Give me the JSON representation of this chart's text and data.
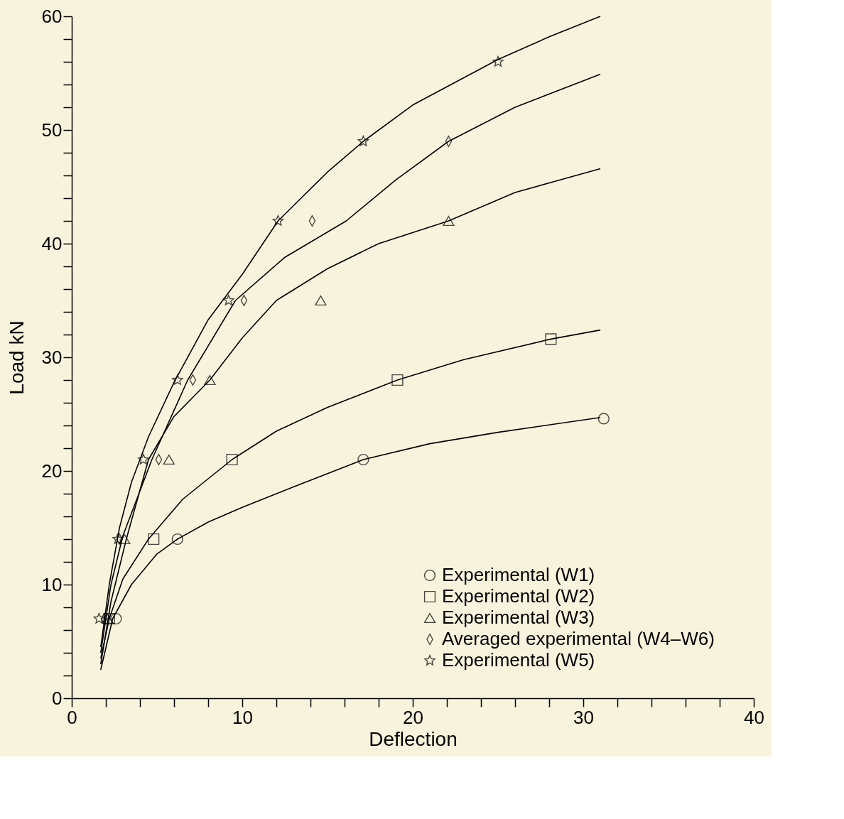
{
  "chart_data": {
    "type": "scatter",
    "xlabel": "Deflection",
    "ylabel": "Load  kN",
    "xlim": [
      0,
      40
    ],
    "ylim": [
      0,
      60
    ],
    "xticks": [
      0,
      {
        "value": 2,
        "label": null
      },
      {
        "value": 4,
        "label": null
      },
      {
        "value": 6,
        "label": null
      },
      {
        "value": 8,
        "label": null
      },
      10,
      {
        "value": 12,
        "label": null
      },
      {
        "value": 14,
        "label": null
      },
      {
        "value": 16,
        "label": null
      },
      {
        "value": 18,
        "label": null
      },
      20,
      {
        "value": 22,
        "label": null
      },
      {
        "value": 24,
        "label": null
      },
      {
        "value": 26,
        "label": null
      },
      {
        "value": 28,
        "label": null
      },
      30,
      {
        "value": 32,
        "label": null
      },
      {
        "value": 34,
        "label": null
      },
      {
        "value": 36,
        "label": null
      },
      {
        "value": 38,
        "label": null
      },
      40
    ],
    "yticks": [
      0,
      {
        "value": 2,
        "label": null
      },
      {
        "value": 4,
        "label": null
      },
      {
        "value": 6,
        "label": null
      },
      {
        "value": 8,
        "label": null
      },
      10,
      {
        "value": 12,
        "label": null
      },
      {
        "value": 14,
        "label": null
      },
      {
        "value": 16,
        "label": null
      },
      {
        "value": 18,
        "label": null
      },
      20,
      {
        "value": 22,
        "label": null
      },
      {
        "value": 24,
        "label": null
      },
      {
        "value": 26,
        "label": null
      },
      {
        "value": 28,
        "label": null
      },
      30,
      {
        "value": 32,
        "label": null
      },
      {
        "value": 34,
        "label": null
      },
      {
        "value": 36,
        "label": null
      },
      {
        "value": 38,
        "label": null
      },
      40,
      {
        "value": 42,
        "label": null
      },
      {
        "value": 44,
        "label": null
      },
      {
        "value": 46,
        "label": null
      },
      {
        "value": 48,
        "label": null
      },
      50,
      {
        "value": 52,
        "label": null
      },
      {
        "value": 54,
        "label": null
      },
      {
        "value": 56,
        "label": null
      },
      {
        "value": 58,
        "label": null
      },
      60
    ],
    "grid": false,
    "legend": "bottom right",
    "series": [
      {
        "name": "Experimental  (W1)",
        "marker": "circle",
        "color": "#000000",
        "x": [
          2.6,
          6.2,
          17.1,
          31.2
        ],
        "values": [
          7,
          14,
          21,
          24.6
        ]
      },
      {
        "name": "Experimental  (W2)",
        "marker": "square",
        "color": "#000000",
        "x": [
          2.2,
          4.8,
          9.4,
          19.1,
          28.1
        ],
        "values": [
          7,
          14,
          21,
          28,
          31.6
        ]
      },
      {
        "name": "Experimental  (W3)",
        "marker": "triangle",
        "color": "#000000",
        "x": [
          2.1,
          3.1,
          5.7,
          8.1,
          14.6,
          22.1
        ],
        "values": [
          7,
          14,
          21,
          28,
          35,
          42
        ]
      },
      {
        "name": "Averaged  experimental  (W4–W6)",
        "marker": "diamond",
        "color": "#000000",
        "x": [
          1.9,
          2.8,
          5.1,
          7.1,
          10.1,
          14.1,
          22.1
        ],
        "values": [
          7,
          14,
          21,
          28,
          35,
          42,
          49
        ]
      },
      {
        "name": "Experimental  (W5)",
        "marker": "star",
        "color": "#000000",
        "x": [
          1.6,
          2.7,
          4.2,
          6.2,
          9.2,
          12.1,
          17.1,
          25.0
        ],
        "values": [
          7,
          14,
          21,
          28,
          35,
          42,
          49,
          56
        ]
      },
      {
        "type": "line",
        "color": "#000000",
        "line_style": "solid",
        "marker": "none",
        "x": [
          1.7,
          2.4,
          3.5,
          5,
          6.2,
          8,
          10,
          13,
          17.1,
          21,
          25,
          31
        ],
        "values": [
          2.5,
          7,
          10,
          12.7,
          14,
          15.5,
          16.8,
          18.6,
          21,
          22.4,
          23.4,
          24.7
        ]
      },
      {
        "type": "line",
        "color": "#000000",
        "line_style": "solid",
        "marker": "none",
        "x": [
          1.7,
          2.2,
          3,
          4.5,
          6.5,
          9.4,
          12,
          15,
          19.1,
          23,
          28.1,
          31
        ],
        "values": [
          3.5,
          7,
          10.5,
          14,
          17.5,
          21,
          23.5,
          25.6,
          28,
          29.8,
          31.6,
          32.4
        ]
      },
      {
        "type": "line",
        "color": "#000000",
        "line_style": "solid",
        "marker": "none",
        "x": [
          1.7,
          2.3,
          3.2,
          4.5,
          6,
          8.1,
          10,
          12,
          15,
          18,
          22.1,
          26,
          31
        ],
        "values": [
          3,
          8.5,
          14,
          21,
          24.8,
          28,
          31.7,
          35,
          37.8,
          40,
          42,
          44.5,
          46.6
        ]
      },
      {
        "type": "line",
        "color": "#000000",
        "line_style": "solid",
        "marker": "none",
        "x": [
          1.7,
          2.3,
          3,
          4.7,
          6.8,
          9.6,
          12.5,
          16.1,
          19,
          22.1,
          26,
          31
        ],
        "values": [
          4,
          10,
          14.3,
          21,
          28,
          35,
          38.8,
          42,
          45.6,
          49,
          52,
          54.9
        ]
      },
      {
        "type": "line",
        "color": "#000000",
        "line_style": "solid",
        "marker": "none",
        "x": [
          1.7,
          2.2,
          2.8,
          3.5,
          4.5,
          6,
          8,
          10,
          12.1,
          15,
          17.1,
          20,
          25,
          28,
          31
        ],
        "values": [
          4.5,
          10,
          15,
          19,
          23,
          27.8,
          33.3,
          37.3,
          42,
          46.3,
          49,
          52.2,
          56.2,
          58.2,
          60
        ]
      }
    ]
  }
}
